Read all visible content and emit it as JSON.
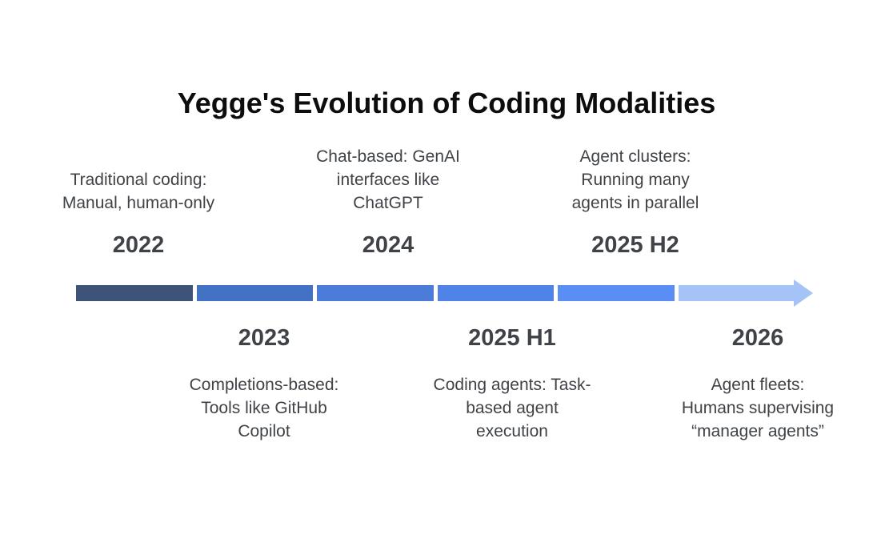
{
  "title": "Yegge's Evolution of Coding Modalities",
  "timeline": {
    "arrow_color": "#a6c3f7",
    "text_color": "#3f4347",
    "milestones": [
      {
        "year": "2022",
        "description": "Traditional coding:\nManual, human-only",
        "label_position": "top",
        "color": "#3e5378"
      },
      {
        "year": "2023",
        "description": "Completions-based:\nTools like GitHub\nCopilot",
        "label_position": "bottom",
        "color": "#4372c4"
      },
      {
        "year": "2024",
        "description": "Chat-based: GenAI\ninterfaces like\nChatGPT",
        "label_position": "top",
        "color": "#4b7cd9"
      },
      {
        "year": "2025 H1",
        "description": "Coding agents: Task-\nbased agent\nexecution",
        "label_position": "bottom",
        "color": "#4f83e8"
      },
      {
        "year": "2025 H2",
        "description": "Agent clusters:\nRunning many\nagents in parallel",
        "label_position": "top",
        "color": "#5a8ef5"
      },
      {
        "year": "2026",
        "description": "Agent fleets:\nHumans supervising\n“manager agents”",
        "label_position": "bottom",
        "color": "#a6c3f7"
      }
    ]
  }
}
